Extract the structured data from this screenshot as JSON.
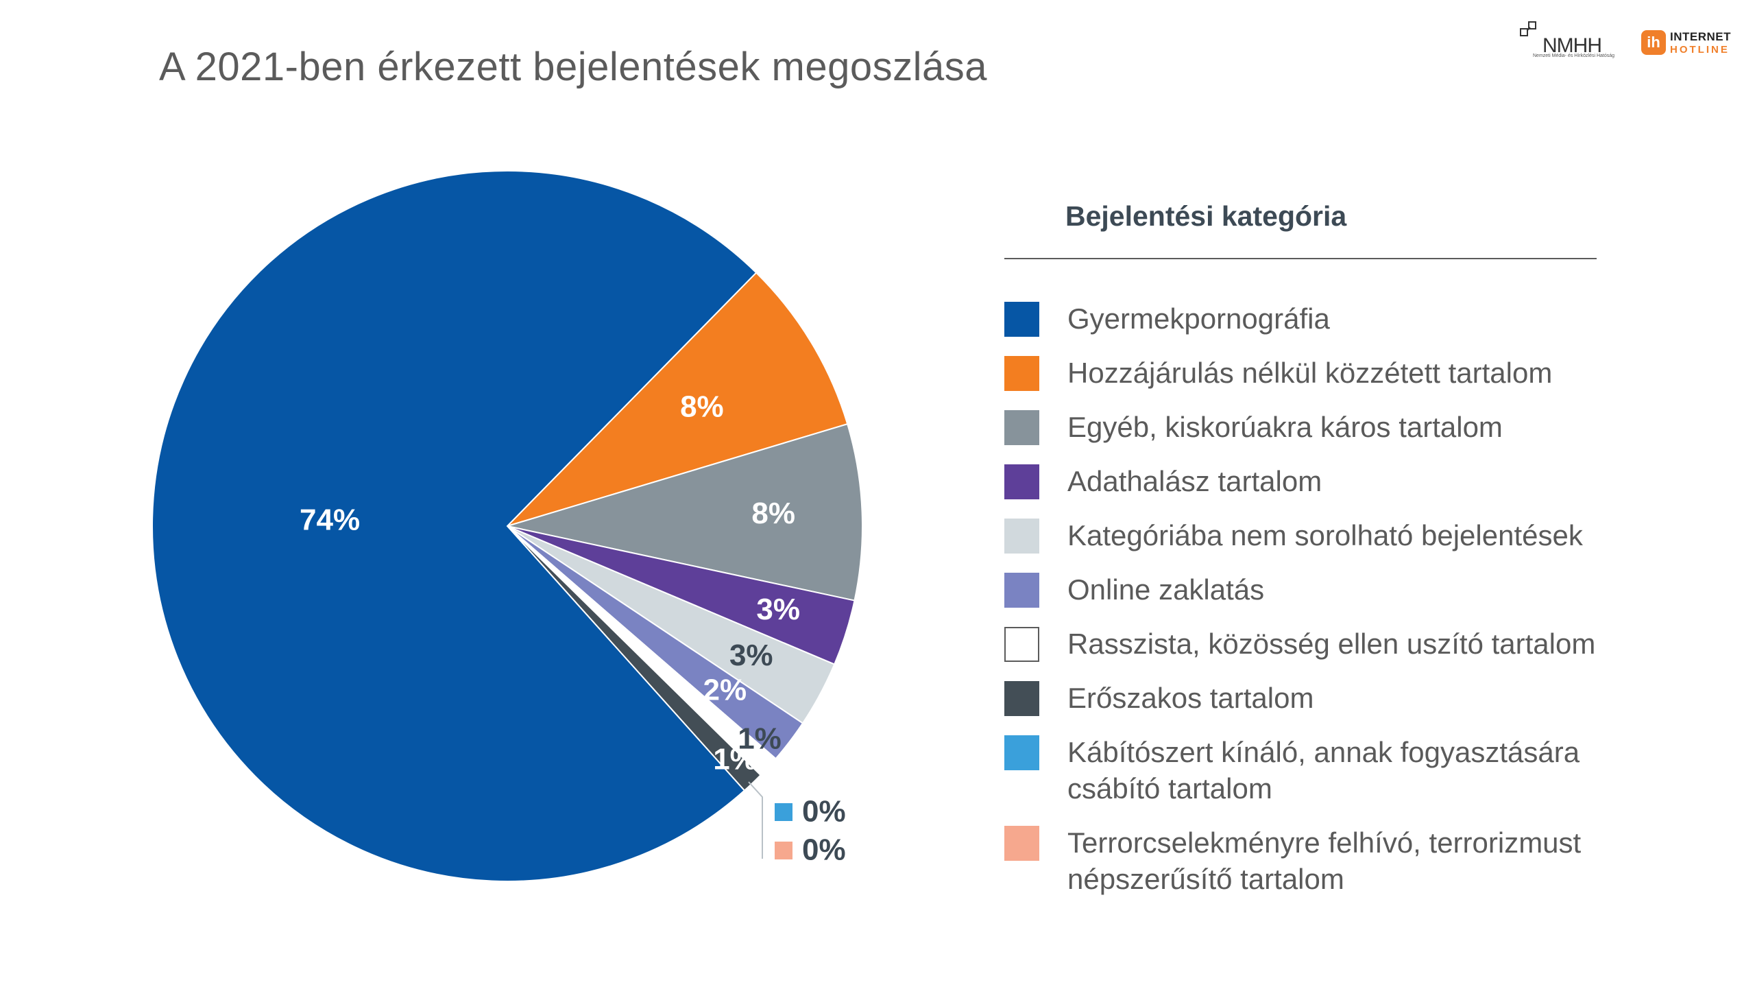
{
  "header": {
    "title": "A 2021-ben érkezett bejelentések megoszlása"
  },
  "logos": {
    "nmhh_text": "NMHH",
    "nmhh_subtitle": "Nemzeti Média- és Hírközlési Hatóság",
    "ih_badge": "ih",
    "ih_line1": "INTERNET",
    "ih_line2": "HOTLINE"
  },
  "legend": {
    "title": "Bejelentési kategória"
  },
  "chart_data": {
    "type": "pie",
    "title": "A 2021-ben érkezett bejelentések megoszlása",
    "legend_title": "Bejelentési kategória",
    "legend_position": "right",
    "slices": [
      {
        "name": "Gyermekpornográfia",
        "value": 74,
        "label": "74%",
        "color": "#0656a5",
        "label_color": "#ffffff"
      },
      {
        "name": "Hozzájárulás nélkül közzétett tartalom",
        "value": 8,
        "label": "8%",
        "color": "#f37e20",
        "label_color": "#ffffff"
      },
      {
        "name": "Egyéb, kiskorúakra káros tartalom",
        "value": 8,
        "label": "8%",
        "color": "#87939b",
        "label_color": "#ffffff"
      },
      {
        "name": "Adathalász tartalom",
        "value": 3,
        "label": "3%",
        "color": "#5e3f99",
        "label_color": "#ffffff"
      },
      {
        "name": "Kategóriába nem sorolható bejelentések",
        "value": 3,
        "label": "3%",
        "color": "#d1d9dd",
        "label_color": "#3d4a55"
      },
      {
        "name": "Online zaklatás",
        "value": 2,
        "label": "2%",
        "color": "#7a83c2",
        "label_color": "#ffffff"
      },
      {
        "name": "Rasszista, közösség ellen uszító tartalom",
        "value": 1,
        "label": "1%",
        "color": "#ffffff",
        "label_color": "#3d4a55"
      },
      {
        "name": "Erőszakos tartalom",
        "value": 1,
        "label": "1%",
        "color": "#434e56",
        "label_color": "#ffffff"
      },
      {
        "name": "Kábítószert kínáló, annak fogyasztására csábító tartalom",
        "value": 0,
        "label": "0%",
        "color": "#3aa0db",
        "label_color": "#3d4a55"
      },
      {
        "name": "Terrorcselekményre felhívó, terrorizmust népszerűsítő tartalom",
        "value": 0,
        "label": "0%",
        "color": "#f6a88e",
        "label_color": "#3d4a55"
      }
    ]
  }
}
